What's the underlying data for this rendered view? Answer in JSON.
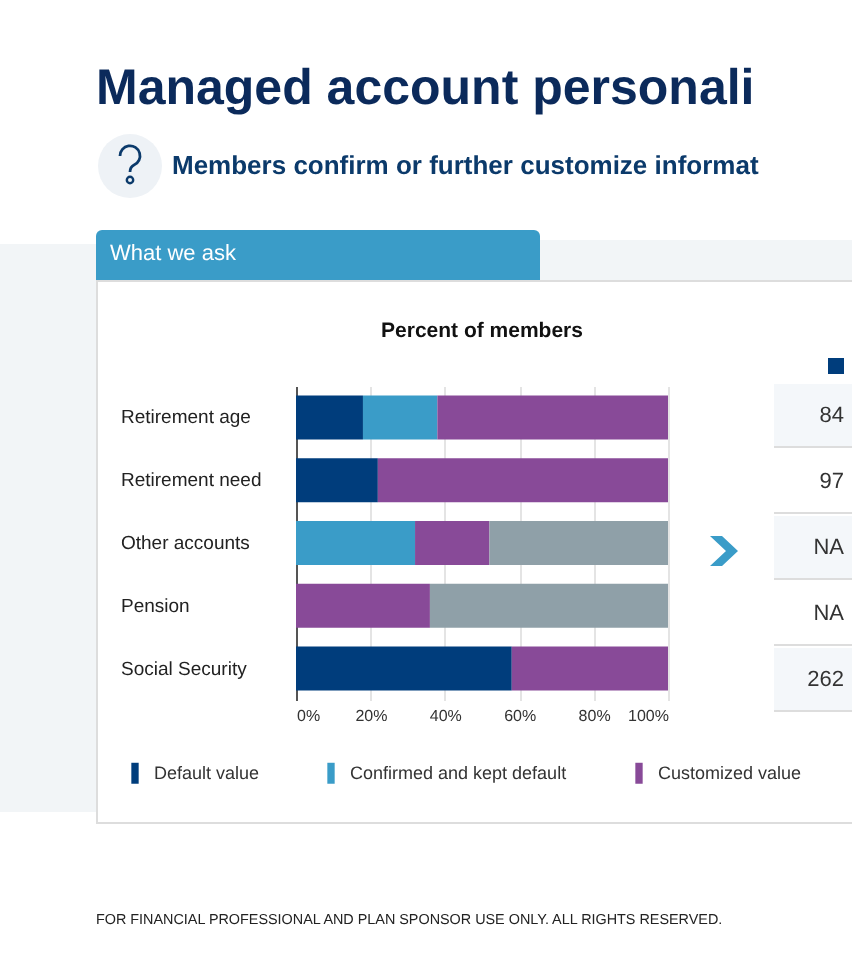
{
  "chart_data": {
    "type": "bar",
    "orientation": "horizontal",
    "stacked": true,
    "title": "Managed account personali",
    "subtitle": "Members confirm or further customize informat",
    "categories": [
      "Retirement age",
      "Retirement need",
      "Other accounts",
      "Pension",
      "Social Security"
    ],
    "series": [
      {
        "name": "Default value",
        "color": "#003d7c",
        "values": [
          18,
          22,
          null,
          null,
          58
        ]
      },
      {
        "name": "Confirmed and kept default",
        "color": "#3a9cc8",
        "values": [
          20,
          null,
          32,
          null,
          null
        ]
      },
      {
        "name": "Customized value",
        "color": "#884a98",
        "values": [
          62,
          78,
          20,
          36,
          42
        ]
      },
      {
        "color": "#8fa0a8",
        "values": [
          null,
          null,
          48,
          64,
          null
        ]
      }
    ],
    "xlim": [
      0,
      100
    ],
    "xticks": [
      {
        "value": 0,
        "label": "0%"
      },
      {
        "value": 20,
        "label": "20%"
      },
      {
        "value": 40,
        "label": "40%"
      },
      {
        "value": 60,
        "label": "60%"
      },
      {
        "value": 80,
        "label": "80%"
      },
      {
        "value": 100,
        "label": "100%"
      }
    ],
    "grid": "x",
    "legend": "bottom",
    "annotations": [
      "What we ask",
      "Percent of members",
      "84",
      "97",
      "NA",
      "NA",
      "262",
      "FOR FINANCIAL PROFESSIONAL AND PLAN SPONSOR USE ONLY. ALL RIGHTS RESERVED."
    ]
  }
}
